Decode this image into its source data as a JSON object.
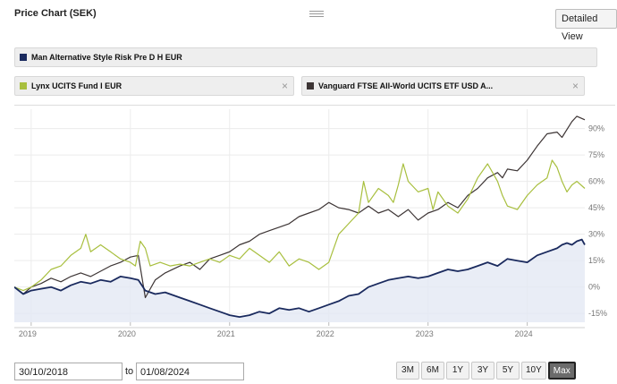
{
  "header": {
    "title": "Price Chart (SEK)",
    "detail_view_label": "Detailed View"
  },
  "legend": [
    {
      "label": "Man Alternative Style Risk Pre D H EUR",
      "color": "#1a2a5e",
      "closable": false
    },
    {
      "label": "Lynx UCITS Fund I EUR",
      "color": "#a8bf3e",
      "closable": true
    },
    {
      "label": "Vanguard FTSE All-World UCITS ETF USD A...",
      "color": "#3d3535",
      "closable": true
    }
  ],
  "close_glyph": "×",
  "chart_data": {
    "type": "line",
    "title": "Price Chart (SEK)",
    "x_tick_labels": [
      "2019",
      "2020",
      "2021",
      "2022",
      "2023",
      "2024"
    ],
    "y_tick_labels": [
      "90%",
      "75%",
      "60%",
      "45%",
      "30%",
      "15%",
      "0%",
      "-15%"
    ],
    "y_ticks": [
      90,
      75,
      60,
      45,
      30,
      15,
      0,
      -15
    ],
    "ylim": [
      -20,
      101
    ],
    "xlim": [
      2018.83,
      2024.58
    ],
    "x_ticks": [
      2019.0,
      2020.0,
      2021.0,
      2022.0,
      2023.0,
      2024.0
    ],
    "grid": true,
    "series": [
      {
        "name": "Vanguard FTSE All-World UCITS ETF USD A...",
        "color": "#3d3535",
        "points": [
          [
            2018.83,
            0
          ],
          [
            2018.92,
            -4
          ],
          [
            2019.0,
            0
          ],
          [
            2019.1,
            2
          ],
          [
            2019.2,
            5
          ],
          [
            2019.3,
            3
          ],
          [
            2019.4,
            6
          ],
          [
            2019.5,
            8
          ],
          [
            2019.6,
            6
          ],
          [
            2019.7,
            9
          ],
          [
            2019.8,
            12
          ],
          [
            2019.9,
            14
          ],
          [
            2020.0,
            17
          ],
          [
            2020.08,
            18
          ],
          [
            2020.15,
            -6
          ],
          [
            2020.25,
            4
          ],
          [
            2020.35,
            8
          ],
          [
            2020.5,
            12
          ],
          [
            2020.6,
            14
          ],
          [
            2020.7,
            10
          ],
          [
            2020.8,
            16
          ],
          [
            2020.9,
            18
          ],
          [
            2021.0,
            20
          ],
          [
            2021.1,
            24
          ],
          [
            2021.2,
            26
          ],
          [
            2021.3,
            30
          ],
          [
            2021.4,
            32
          ],
          [
            2021.5,
            34
          ],
          [
            2021.6,
            36
          ],
          [
            2021.7,
            40
          ],
          [
            2021.8,
            42
          ],
          [
            2021.9,
            44
          ],
          [
            2022.0,
            48
          ],
          [
            2022.1,
            45
          ],
          [
            2022.2,
            44
          ],
          [
            2022.3,
            42
          ],
          [
            2022.4,
            46
          ],
          [
            2022.5,
            42
          ],
          [
            2022.6,
            44
          ],
          [
            2022.7,
            40
          ],
          [
            2022.8,
            44
          ],
          [
            2022.9,
            38
          ],
          [
            2023.0,
            42
          ],
          [
            2023.1,
            44
          ],
          [
            2023.2,
            48
          ],
          [
            2023.3,
            45
          ],
          [
            2023.4,
            52
          ],
          [
            2023.5,
            56
          ],
          [
            2023.6,
            62
          ],
          [
            2023.7,
            65
          ],
          [
            2023.75,
            62
          ],
          [
            2023.8,
            67
          ],
          [
            2023.9,
            66
          ],
          [
            2024.0,
            72
          ],
          [
            2024.1,
            80
          ],
          [
            2024.2,
            87
          ],
          [
            2024.3,
            88
          ],
          [
            2024.35,
            85
          ],
          [
            2024.45,
            94
          ],
          [
            2024.5,
            97
          ],
          [
            2024.58,
            95
          ]
        ]
      },
      {
        "name": "Lynx UCITS Fund I EUR",
        "color": "#a8bf3e",
        "points": [
          [
            2018.83,
            0
          ],
          [
            2018.92,
            -2
          ],
          [
            2019.0,
            0
          ],
          [
            2019.1,
            4
          ],
          [
            2019.2,
            10
          ],
          [
            2019.3,
            12
          ],
          [
            2019.4,
            18
          ],
          [
            2019.5,
            22
          ],
          [
            2019.55,
            30
          ],
          [
            2019.6,
            20
          ],
          [
            2019.7,
            24
          ],
          [
            2019.8,
            20
          ],
          [
            2019.9,
            16
          ],
          [
            2020.0,
            14
          ],
          [
            2020.05,
            12
          ],
          [
            2020.1,
            26
          ],
          [
            2020.15,
            22
          ],
          [
            2020.2,
            12
          ],
          [
            2020.3,
            14
          ],
          [
            2020.4,
            12
          ],
          [
            2020.5,
            13
          ],
          [
            2020.6,
            12
          ],
          [
            2020.7,
            14
          ],
          [
            2020.8,
            16
          ],
          [
            2020.9,
            14
          ],
          [
            2021.0,
            18
          ],
          [
            2021.1,
            16
          ],
          [
            2021.2,
            22
          ],
          [
            2021.3,
            18
          ],
          [
            2021.4,
            14
          ],
          [
            2021.5,
            20
          ],
          [
            2021.6,
            12
          ],
          [
            2021.7,
            16
          ],
          [
            2021.8,
            14
          ],
          [
            2021.9,
            10
          ],
          [
            2022.0,
            14
          ],
          [
            2022.1,
            30
          ],
          [
            2022.2,
            36
          ],
          [
            2022.3,
            42
          ],
          [
            2022.35,
            60
          ],
          [
            2022.4,
            48
          ],
          [
            2022.5,
            56
          ],
          [
            2022.6,
            52
          ],
          [
            2022.65,
            48
          ],
          [
            2022.7,
            58
          ],
          [
            2022.75,
            70
          ],
          [
            2022.8,
            60
          ],
          [
            2022.9,
            54
          ],
          [
            2023.0,
            56
          ],
          [
            2023.05,
            44
          ],
          [
            2023.1,
            54
          ],
          [
            2023.2,
            46
          ],
          [
            2023.3,
            42
          ],
          [
            2023.4,
            50
          ],
          [
            2023.5,
            62
          ],
          [
            2023.6,
            70
          ],
          [
            2023.7,
            60
          ],
          [
            2023.75,
            52
          ],
          [
            2023.8,
            46
          ],
          [
            2023.9,
            44
          ],
          [
            2024.0,
            52
          ],
          [
            2024.1,
            58
          ],
          [
            2024.2,
            62
          ],
          [
            2024.25,
            72
          ],
          [
            2024.3,
            68
          ],
          [
            2024.35,
            60
          ],
          [
            2024.4,
            54
          ],
          [
            2024.45,
            58
          ],
          [
            2024.5,
            60
          ],
          [
            2024.58,
            56
          ]
        ]
      },
      {
        "name": "Man Alternative Style Risk Pre D H EUR",
        "color": "#1a2a5e",
        "points": [
          [
            2018.83,
            0
          ],
          [
            2018.92,
            -4
          ],
          [
            2019.0,
            -2
          ],
          [
            2019.1,
            -1
          ],
          [
            2019.2,
            0
          ],
          [
            2019.3,
            -2
          ],
          [
            2019.4,
            1
          ],
          [
            2019.5,
            3
          ],
          [
            2019.6,
            2
          ],
          [
            2019.7,
            4
          ],
          [
            2019.8,
            3
          ],
          [
            2019.9,
            6
          ],
          [
            2020.0,
            5
          ],
          [
            2020.08,
            4
          ],
          [
            2020.15,
            -2
          ],
          [
            2020.25,
            -4
          ],
          [
            2020.35,
            -3
          ],
          [
            2020.5,
            -6
          ],
          [
            2020.6,
            -8
          ],
          [
            2020.7,
            -10
          ],
          [
            2020.8,
            -12
          ],
          [
            2020.9,
            -14
          ],
          [
            2021.0,
            -16
          ],
          [
            2021.1,
            -17
          ],
          [
            2021.2,
            -16
          ],
          [
            2021.3,
            -14
          ],
          [
            2021.4,
            -15
          ],
          [
            2021.5,
            -12
          ],
          [
            2021.6,
            -13
          ],
          [
            2021.7,
            -12
          ],
          [
            2021.8,
            -14
          ],
          [
            2021.9,
            -12
          ],
          [
            2022.0,
            -10
          ],
          [
            2022.1,
            -8
          ],
          [
            2022.2,
            -5
          ],
          [
            2022.3,
            -4
          ],
          [
            2022.4,
            0
          ],
          [
            2022.5,
            2
          ],
          [
            2022.6,
            4
          ],
          [
            2022.7,
            5
          ],
          [
            2022.8,
            6
          ],
          [
            2022.9,
            5
          ],
          [
            2023.0,
            6
          ],
          [
            2023.1,
            8
          ],
          [
            2023.2,
            10
          ],
          [
            2023.3,
            9
          ],
          [
            2023.4,
            10
          ],
          [
            2023.5,
            12
          ],
          [
            2023.6,
            14
          ],
          [
            2023.7,
            12
          ],
          [
            2023.8,
            16
          ],
          [
            2023.9,
            15
          ],
          [
            2024.0,
            14
          ],
          [
            2024.1,
            18
          ],
          [
            2024.2,
            20
          ],
          [
            2024.3,
            22
          ],
          [
            2024.35,
            24
          ],
          [
            2024.4,
            25
          ],
          [
            2024.45,
            24
          ],
          [
            2024.5,
            26
          ],
          [
            2024.55,
            27
          ],
          [
            2024.58,
            24
          ]
        ]
      }
    ]
  },
  "date_range": {
    "from": "30/10/2018",
    "to_label": "to",
    "to": "01/08/2024"
  },
  "range_buttons": [
    "3M",
    "6M",
    "1Y",
    "3Y",
    "5Y",
    "10Y",
    "Max"
  ],
  "active_range": "Max"
}
